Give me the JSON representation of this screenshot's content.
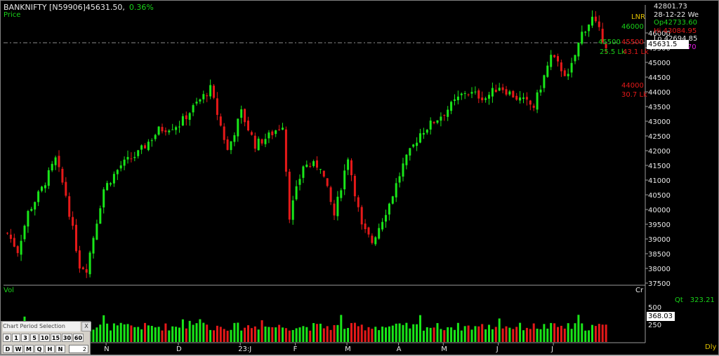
{
  "header": {
    "symbol": "BANKNIFTY [N59906]45631.50,",
    "change": "0.36%",
    "price_label": "Price",
    "volume_label": "Vol",
    "cr_label": "Cr",
    "period_label": "Dly"
  },
  "info": {
    "last": "42801.73",
    "date": "28-12-22 We",
    "open": "Op42733.60",
    "high": "Hi 43084.95",
    "low": "Lo 42694.85",
    "close": "Cl 42827.70"
  },
  "right_labels": {
    "lnr": "LNR",
    "level_46000": "46000",
    "level_45500_green": "45500",
    "level_45500_red": "45500",
    "val_25_5": "25.5 Lk",
    "val_43_1": "43.1 Lk",
    "level_44000": "44000",
    "val_30_7": "30.7 Lk"
  },
  "price_box": "45631.5",
  "volume_box": "368.03",
  "quantity": {
    "label": "Qt",
    "value": "323.21"
  },
  "colors": {
    "up": "#19e619",
    "down": "#e61919",
    "background": "#000000",
    "axis_text": "#e8e8e8",
    "info_open": "#19d219",
    "info_high": "#e61919",
    "info_close": "#e619e6"
  },
  "period_panel": {
    "title": "Chart Period Selection",
    "close": "X",
    "minute_buttons": [
      "0",
      "1",
      "3",
      "5",
      "10",
      "15",
      "30",
      "60"
    ],
    "period_buttons": [
      "D",
      "W",
      "M",
      "Q",
      "H",
      "N"
    ],
    "interval_value": "2"
  },
  "chart_data": {
    "type": "candlestick",
    "price_axis": {
      "range": [
        37500,
        46300
      ],
      "ticks": [
        "46000",
        "45500",
        "45000",
        "44500",
        "44000",
        "43500",
        "43000",
        "42500",
        "42000",
        "41500",
        "41000",
        "40500",
        "40000",
        "39500",
        "39000",
        "38500",
        "38000",
        "37500"
      ]
    },
    "volume_axis": {
      "ticks": [
        "500",
        "250"
      ]
    },
    "x_labels": [
      {
        "label": "N",
        "index": 29
      },
      {
        "label": "D",
        "index": 50
      },
      {
        "label": "23:J",
        "index": 68
      },
      {
        "label": "F",
        "index": 84
      },
      {
        "label": "M",
        "index": 99
      },
      {
        "label": "A",
        "index": 114
      },
      {
        "label": "M",
        "index": 127
      },
      {
        "label": "J",
        "index": 143
      },
      {
        "label": "J",
        "index": 159
      }
    ],
    "candle_count": 175,
    "close_anchors": [
      [
        0,
        39200
      ],
      [
        3,
        38600
      ],
      [
        6,
        39900
      ],
      [
        10,
        40700
      ],
      [
        14,
        41700
      ],
      [
        17,
        40500
      ],
      [
        21,
        38100
      ],
      [
        23,
        38000
      ],
      [
        28,
        40700
      ],
      [
        33,
        41500
      ],
      [
        38,
        41900
      ],
      [
        44,
        42700
      ],
      [
        50,
        42900
      ],
      [
        55,
        43600
      ],
      [
        59,
        44100
      ],
      [
        64,
        42000
      ],
      [
        68,
        43300
      ],
      [
        72,
        42200
      ],
      [
        76,
        42500
      ],
      [
        80,
        42900
      ],
      [
        82,
        39800
      ],
      [
        86,
        41500
      ],
      [
        91,
        41500
      ],
      [
        95,
        39800
      ],
      [
        99,
        41800
      ],
      [
        103,
        39400
      ],
      [
        106,
        38900
      ],
      [
        111,
        40200
      ],
      [
        115,
        41500
      ],
      [
        120,
        42600
      ],
      [
        127,
        43300
      ],
      [
        133,
        44000
      ],
      [
        139,
        43800
      ],
      [
        143,
        44200
      ],
      [
        148,
        43800
      ],
      [
        153,
        43500
      ],
      [
        158,
        45200
      ],
      [
        163,
        44500
      ],
      [
        167,
        46000
      ],
      [
        170,
        46500
      ],
      [
        174,
        45600
      ]
    ]
  }
}
